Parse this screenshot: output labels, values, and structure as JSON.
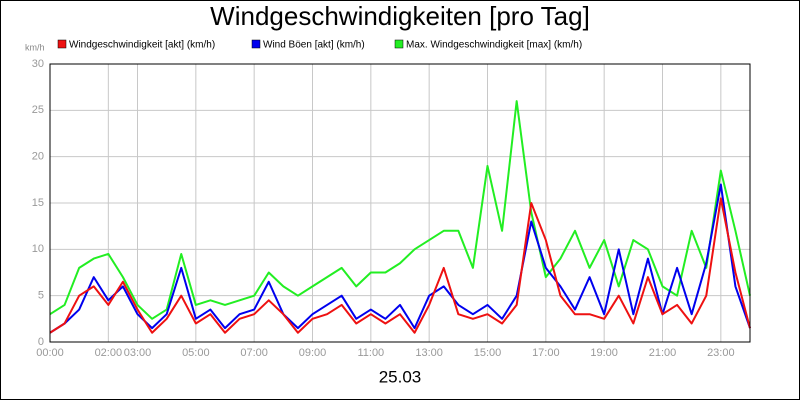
{
  "chart_data": {
    "type": "line",
    "title": "Windgeschwindigkeiten [pro Tag]",
    "y_label": "km/h",
    "x_label": "25.03",
    "x": [
      0,
      0.5,
      1,
      1.5,
      2,
      2.5,
      3,
      3.5,
      4,
      4.5,
      5,
      5.5,
      6,
      6.5,
      7,
      7.5,
      8,
      8.5,
      9,
      9.5,
      10,
      10.5,
      11,
      11.5,
      12,
      12.5,
      13,
      13.5,
      14,
      14.5,
      15,
      15.5,
      16,
      16.5,
      17,
      17.5,
      18,
      18.5,
      19,
      19.5,
      20,
      20.5,
      21,
      21.5,
      22,
      22.5,
      23,
      23.5,
      24
    ],
    "series": [
      {
        "name": "Windgeschwindigkeit [akt] (km/h)",
        "color": "#ee1111",
        "values": [
          1,
          2,
          5,
          6,
          4,
          6.5,
          3.5,
          1,
          2.5,
          5,
          2,
          3,
          1,
          2.5,
          3,
          4.5,
          3,
          1,
          2.5,
          3,
          4,
          2,
          3,
          2,
          3,
          1,
          4,
          8,
          3,
          2.5,
          3,
          2,
          4,
          15,
          11,
          5,
          3,
          3,
          2.5,
          5,
          2,
          7,
          3,
          4,
          2,
          5,
          15.5,
          7.5,
          1.5
        ]
      },
      {
        "name": "Wind Böen [akt] (km/h)",
        "color": "#0000ee",
        "values": [
          1,
          2,
          3.5,
          7,
          4.5,
          6,
          3,
          1.5,
          3,
          8,
          2.5,
          3.5,
          1.5,
          3,
          3.5,
          6.5,
          3,
          1.5,
          3,
          4,
          5,
          2.5,
          3.5,
          2.5,
          4,
          1.5,
          5,
          6,
          4,
          3,
          4,
          2.5,
          5,
          13,
          8,
          6,
          3.5,
          7,
          3,
          10,
          3,
          9,
          3,
          8,
          3,
          8.5,
          17,
          6,
          1.5
        ]
      },
      {
        "name": "Max. Windgeschwindigkeit [max] (km/h)",
        "color": "#22ee22",
        "values": [
          3,
          4,
          8,
          9,
          9.5,
          7,
          4,
          2.5,
          3.5,
          9.5,
          4,
          4.5,
          4,
          4.5,
          5,
          7.5,
          6,
          5,
          6,
          7,
          8,
          6,
          7.5,
          7.5,
          8.5,
          10,
          11,
          12,
          12,
          8,
          19,
          12,
          26,
          14,
          7,
          9,
          12,
          8,
          11,
          6,
          11,
          10,
          6,
          5,
          12,
          8,
          18.5,
          12,
          5
        ]
      }
    ],
    "xlim": [
      0,
      24
    ],
    "xticks": [
      {
        "value": 0,
        "label": "00:00"
      },
      {
        "value": 2,
        "label": "02:00"
      },
      {
        "value": 3,
        "label": "03:00"
      },
      {
        "value": 5,
        "label": "05:00"
      },
      {
        "value": 7,
        "label": "07:00"
      },
      {
        "value": 9,
        "label": "09:00"
      },
      {
        "value": 11,
        "label": "11:00"
      },
      {
        "value": 13,
        "label": "13:00"
      },
      {
        "value": 15,
        "label": "15:00"
      },
      {
        "value": 17,
        "label": "17:00"
      },
      {
        "value": 19,
        "label": "19:00"
      },
      {
        "value": 21,
        "label": "21:00"
      },
      {
        "value": 23,
        "label": "23:00"
      }
    ],
    "ylim": [
      0,
      30
    ],
    "yticks": [
      0,
      5,
      10,
      15,
      20,
      25,
      30
    ],
    "grid": true
  }
}
